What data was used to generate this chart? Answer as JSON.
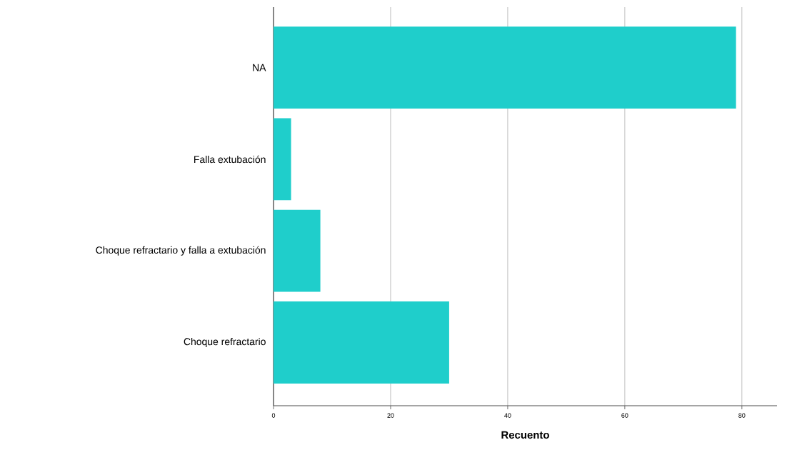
{
  "chart_data": {
    "type": "bar",
    "orientation": "horizontal",
    "xlabel": "Recuento",
    "categories": [
      "NA",
      "Falla extubación",
      "Choque refractario y falla a extubación",
      "Choque refractario"
    ],
    "values": [
      79,
      3,
      8,
      30
    ],
    "color": "#1fcecb",
    "xlim": [
      0,
      86
    ],
    "xticks": [
      0,
      20,
      40,
      60,
      80
    ],
    "grid": "x"
  }
}
